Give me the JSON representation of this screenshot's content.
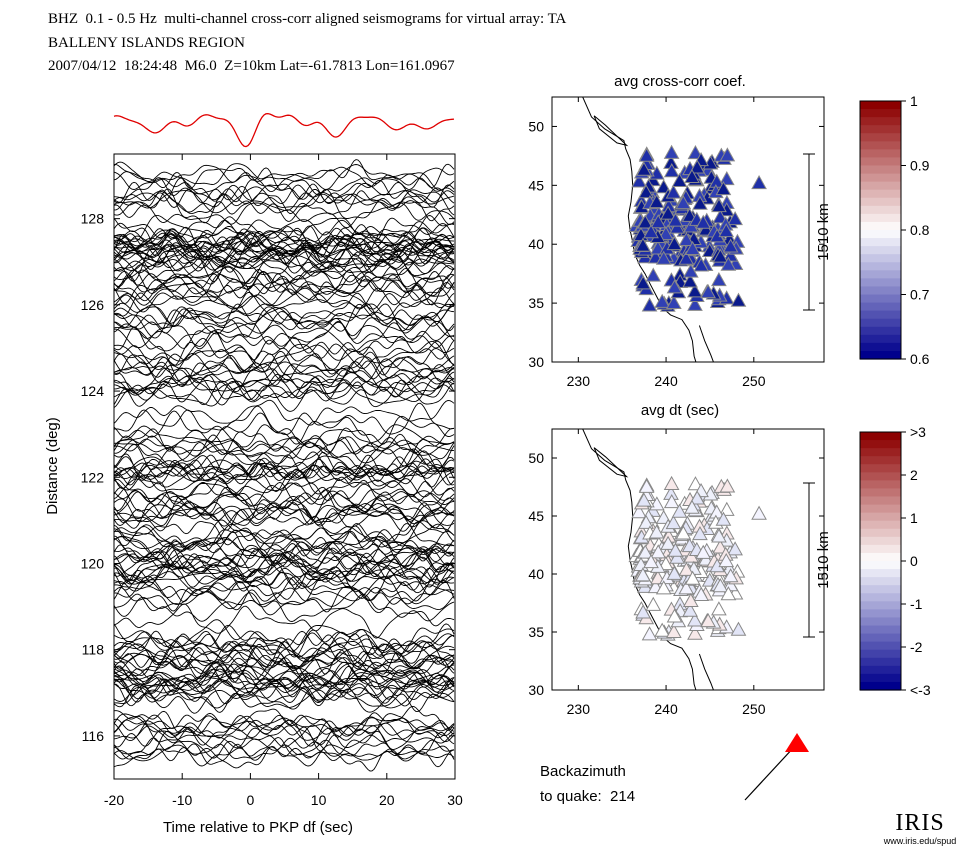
{
  "header": {
    "line1": "BHZ  0.1 - 0.5 Hz  multi-channel cross-corr aligned seismograms for virtual array: TA",
    "line2": "BALLENY ISLANDS REGION",
    "line3": "2007/04/12  18:24:48  M6.0  Z=10km Lat=-61.7813 Lon=161.0967"
  },
  "backazimuth": {
    "line1": "Backazimuth",
    "line2": "to quake:  214",
    "value": 214
  },
  "logo": {
    "text": "IRIS",
    "url_text": "www.iris.edu/spud"
  },
  "colors": {
    "stack_trace": "#e00000",
    "trace": "#000000",
    "arrow_marker": "#ff0000"
  },
  "chart_data": [
    {
      "id": "seismograms",
      "type": "line",
      "title": "",
      "xlabel": "Time relative to PKP df (sec)",
      "ylabel": "Distance (deg)",
      "xlim": [
        -20,
        30
      ],
      "ylim": [
        115,
        129.5
      ],
      "xticks": [
        -20,
        -10,
        0,
        10,
        20,
        30
      ],
      "yticks": [
        116,
        118,
        120,
        122,
        124,
        126,
        128
      ],
      "trace_count": 180,
      "note": "Approximately 180 aligned waveform traces stacked by epicentral distance; red trace above is the stacked beam"
    },
    {
      "id": "avg-ccc-map",
      "type": "scatter",
      "title": "avg cross-corr coef.",
      "xlim": [
        227,
        258
      ],
      "ylim": [
        30,
        52.5
      ],
      "xticks": [
        230,
        240,
        250
      ],
      "yticks": [
        30,
        35,
        40,
        45,
        50
      ],
      "scale_bar_label": "1510 km",
      "colorbar": {
        "min": 0.6,
        "max": 1,
        "ticks": [
          "1",
          "0.9",
          "0.8",
          "0.7",
          "0.6"
        ]
      },
      "value_range_observed": [
        0.6,
        0.66
      ]
    },
    {
      "id": "avg-dt-map",
      "type": "scatter",
      "title": "avg dt (sec)",
      "xlim": [
        227,
        258
      ],
      "ylim": [
        30,
        52.5
      ],
      "xticks": [
        230,
        240,
        250
      ],
      "yticks": [
        30,
        35,
        40,
        45,
        50
      ],
      "scale_bar_label": "1510 km",
      "colorbar": {
        "min": -3,
        "max": 3,
        "ticks": [
          ">3",
          "2",
          "1",
          "0",
          "-1",
          "-2",
          "<-3"
        ]
      },
      "value_range_observed": [
        -0.6,
        0.6
      ]
    }
  ]
}
